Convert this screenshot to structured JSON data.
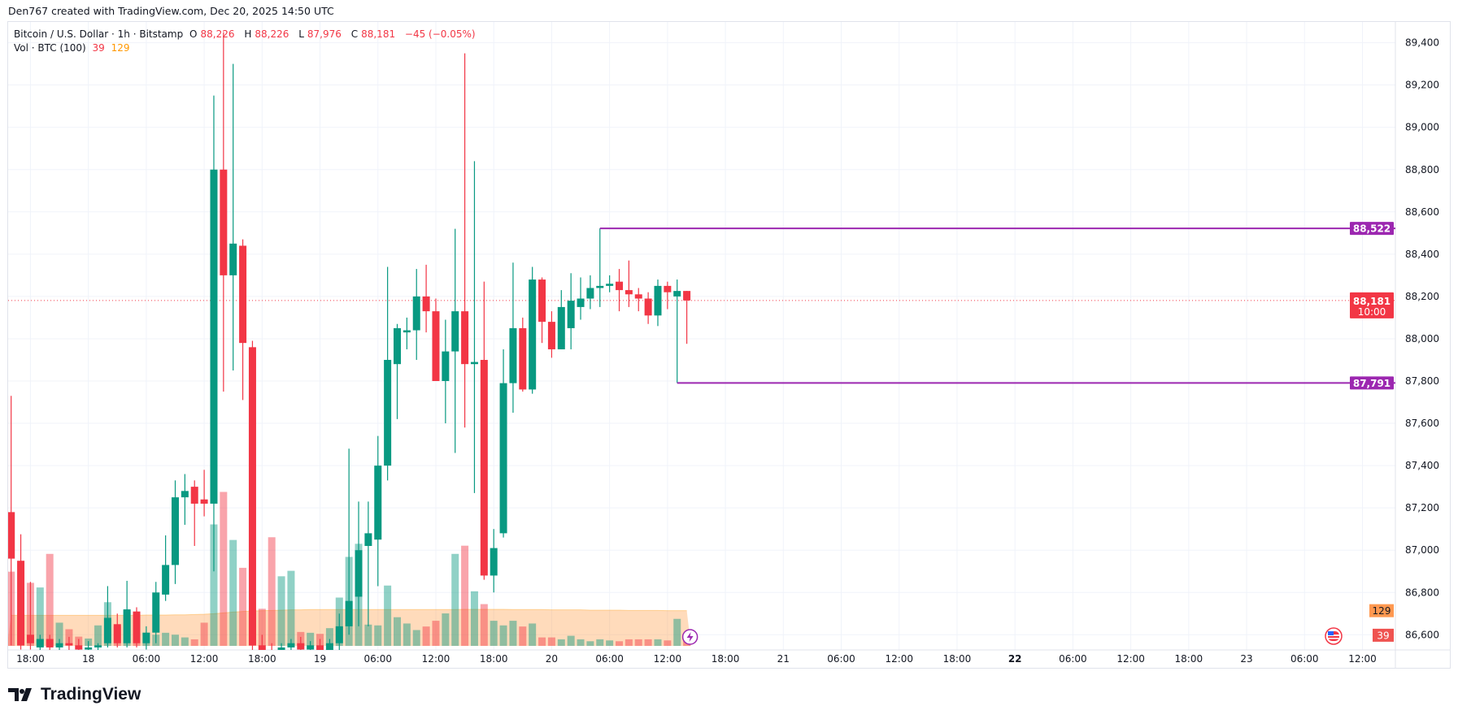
{
  "credit": "Den767 created with TradingView.com, Dec 20, 2025 14:50 UTC",
  "legend": {
    "symbol": "Bitcoin / U.S. Dollar · 1h · Bitstamp",
    "o_label": "O",
    "o": "88,226",
    "h_label": "H",
    "h": "88,226",
    "l_label": "L",
    "l": "87,976",
    "c_label": "C",
    "c": "88,181",
    "change": "−45 (−0.05%)",
    "vol_title": "Vol · BTC (100)",
    "vol_value": "39",
    "vol_ma_value": "129"
  },
  "logo": "TradingView",
  "colors": {
    "up": "#089981",
    "down": "#f23645",
    "level_line": "#9c27b0",
    "volume_ma": "#ff9800",
    "price_line": "#f23645"
  },
  "chart_data": {
    "type": "candlestick",
    "symbol": "BTCUSD",
    "interval": "1h",
    "first_bar": "Dec 17 16:00",
    "ylim": [
      86540,
      89480
    ],
    "y_ticks": [
      86600,
      86800,
      87000,
      87200,
      87400,
      87600,
      87800,
      88000,
      88200,
      88400,
      88600,
      88800,
      89000,
      89200,
      89400
    ],
    "y_tick_labels": [
      "86,600",
      "86,800",
      "87,000",
      "87,200",
      "87,400",
      "87,600",
      "87,800",
      "88,000",
      "88,200",
      "88,400",
      "88,600",
      "88,800",
      "89,000",
      "89,200",
      "89,400"
    ],
    "x_tick_labels": [
      "18:00",
      "18",
      "06:00",
      "12:00",
      "18:00",
      "19",
      "06:00",
      "12:00",
      "18:00",
      "20",
      "06:00",
      "12:00",
      "18:00",
      "21",
      "06:00",
      "12:00",
      "18:00",
      "22",
      "06:00",
      "12:00",
      "18:00",
      "23",
      "06:00",
      "12:00"
    ],
    "grid": true,
    "ohlc": [
      [
        87180,
        87730,
        86550,
        86960
      ],
      [
        86950,
        87075,
        86530,
        86550
      ],
      [
        86600,
        86850,
        86530,
        86560
      ],
      [
        86540,
        86600,
        86500,
        86580
      ],
      [
        86580,
        86600,
        86500,
        86540
      ],
      [
        86540,
        86580,
        86500,
        86560
      ],
      [
        86560,
        86590,
        86500,
        86550
      ],
      [
        86550,
        86580,
        86500,
        86530
      ],
      [
        86530,
        86570,
        86490,
        86540
      ],
      [
        86540,
        86560,
        86490,
        86550
      ],
      [
        86560,
        86830,
        86540,
        86680
      ],
      [
        86650,
        86700,
        86540,
        86560
      ],
      [
        86560,
        86855,
        86540,
        86720
      ],
      [
        86710,
        86730,
        86540,
        86560
      ],
      [
        86560,
        86640,
        86530,
        86610
      ],
      [
        86610,
        86850,
        86560,
        86800
      ],
      [
        86790,
        87070,
        86760,
        86930
      ],
      [
        86930,
        87330,
        86840,
        87250
      ],
      [
        87250,
        87360,
        87120,
        87280
      ],
      [
        87300,
        87330,
        87020,
        87220
      ],
      [
        87240,
        87380,
        87160,
        87220
      ],
      [
        87220,
        89150,
        86900,
        88800
      ],
      [
        88800,
        89450,
        87750,
        88300
      ],
      [
        88300,
        89300,
        87850,
        88450
      ],
      [
        88440,
        88470,
        87710,
        87980
      ],
      [
        87960,
        87990,
        86500,
        86550
      ],
      [
        86550,
        86600,
        86480,
        86520
      ],
      [
        86520,
        86560,
        86470,
        86500
      ],
      [
        86500,
        86560,
        86470,
        86540
      ],
      [
        86540,
        86580,
        86480,
        86560
      ],
      [
        86560,
        86590,
        86500,
        86530
      ],
      [
        86530,
        86570,
        86490,
        86550
      ],
      [
        86550,
        86580,
        86500,
        86520
      ],
      [
        86520,
        86580,
        86490,
        86560
      ],
      [
        86560,
        86700,
        86520,
        86640
      ],
      [
        86640,
        87480,
        86600,
        86760
      ],
      [
        86780,
        87230,
        86640,
        87000
      ],
      [
        87020,
        87230,
        86640,
        87080
      ],
      [
        87050,
        87540,
        86830,
        87400
      ],
      [
        87400,
        88340,
        87330,
        87900
      ],
      [
        87880,
        88070,
        87620,
        88050
      ],
      [
        88030,
        88100,
        87950,
        88040
      ],
      [
        88040,
        88330,
        87900,
        88200
      ],
      [
        88200,
        88350,
        88030,
        88130
      ],
      [
        88130,
        88190,
        87800,
        87800
      ],
      [
        87800,
        88090,
        87600,
        87940
      ],
      [
        87940,
        88520,
        87460,
        88130
      ],
      [
        88130,
        89350,
        87580,
        87880
      ],
      [
        87880,
        88840,
        87270,
        87890
      ],
      [
        87900,
        88270,
        86860,
        86880
      ],
      [
        86880,
        87100,
        86800,
        87010
      ],
      [
        87080,
        87950,
        87060,
        87790
      ],
      [
        87790,
        88360,
        87650,
        88050
      ],
      [
        88050,
        88100,
        87750,
        87760
      ],
      [
        87760,
        88340,
        87740,
        88280
      ],
      [
        88280,
        88290,
        87980,
        88080
      ],
      [
        88080,
        88130,
        87910,
        87950
      ],
      [
        87950,
        88230,
        87950,
        88150
      ],
      [
        88050,
        88310,
        87950,
        88180
      ],
      [
        88150,
        88290,
        88090,
        88190
      ],
      [
        88190,
        88300,
        88140,
        88240
      ],
      [
        88240,
        88522,
        88150,
        88250
      ],
      [
        88250,
        88300,
        88220,
        88260
      ],
      [
        88270,
        88330,
        88130,
        88230
      ],
      [
        88230,
        88370,
        88150,
        88210
      ],
      [
        88210,
        88240,
        88130,
        88190
      ],
      [
        88190,
        88220,
        88070,
        88110
      ],
      [
        88110,
        88280,
        88060,
        88250
      ],
      [
        88250,
        88270,
        88140,
        88220
      ],
      [
        88200,
        88280,
        87791,
        88226
      ],
      [
        88226,
        88226,
        87976,
        88181
      ]
    ],
    "volume": [
      272,
      119,
      231,
      214,
      337,
      85,
      61,
      34,
      27,
      75,
      160,
      71,
      129,
      65,
      48,
      41,
      48,
      41,
      31,
      24,
      85,
      445,
      564,
      388,
      286,
      136,
      136,
      398,
      255,
      275,
      51,
      48,
      44,
      65,
      177,
      326,
      374,
      78,
      75,
      221,
      105,
      82,
      58,
      71,
      92,
      119,
      337,
      367,
      200,
      153,
      92,
      75,
      92,
      71,
      82,
      31,
      31,
      24,
      37,
      24,
      17,
      24,
      20,
      17,
      24,
      24,
      24,
      24,
      20,
      99,
      39
    ],
    "volume_ma": [
      112,
      112,
      112,
      112,
      112,
      112,
      112,
      112,
      112,
      112,
      112,
      112,
      112,
      112,
      113,
      113,
      113,
      114,
      114,
      115,
      116,
      118,
      121,
      124,
      126,
      128,
      129,
      130,
      131,
      132,
      132,
      133,
      133,
      133,
      133,
      133,
      133,
      133,
      133,
      133,
      133,
      133,
      133,
      133,
      133,
      133,
      133,
      134,
      134,
      134,
      134,
      134,
      133,
      133,
      133,
      133,
      132,
      132,
      132,
      132,
      131,
      131,
      131,
      131,
      130,
      130,
      130,
      130,
      129,
      129,
      129
    ],
    "levels": [
      {
        "label": "88,522",
        "price": 88522,
        "from_bar": 61
      },
      {
        "label": "87,791",
        "price": 87791,
        "from_bar": 69
      }
    ],
    "last_price": {
      "label": "88,181",
      "price": 88181,
      "countdown": "10:00"
    },
    "volume_labels": {
      "ma": "129",
      "last": "39"
    }
  }
}
